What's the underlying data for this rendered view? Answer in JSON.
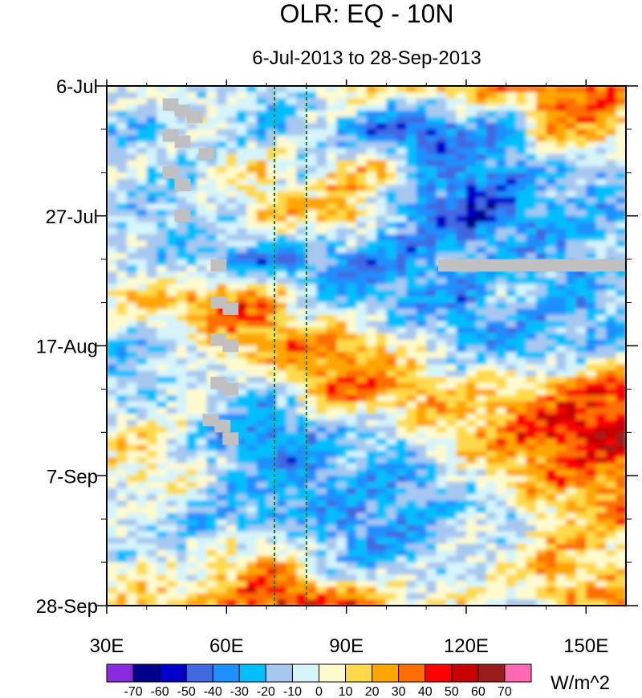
{
  "chart_data": {
    "type": "heatmap",
    "title": "OLR: EQ - 10N",
    "subtitle": "6-Jul-2013 to 28-Sep-2013",
    "x_axis": {
      "range": [
        30,
        160
      ],
      "ticks": [
        {
          "value": 30,
          "label": "30E"
        },
        {
          "value": 60,
          "label": "60E"
        },
        {
          "value": 90,
          "label": "90E"
        },
        {
          "value": 120,
          "label": "120E"
        },
        {
          "value": 150,
          "label": "150E"
        }
      ]
    },
    "y_axis": {
      "range": [
        "2013-07-06",
        "2013-09-28"
      ],
      "direction": "downward",
      "ticks": [
        {
          "value": "2013-07-06",
          "label": "6-Jul"
        },
        {
          "value": "2013-07-27",
          "label": "27-Jul"
        },
        {
          "value": "2013-08-17",
          "label": "17-Aug"
        },
        {
          "value": "2013-09-07",
          "label": "7-Sep"
        },
        {
          "value": "2013-09-28",
          "label": "28-Sep"
        }
      ]
    },
    "reference_lines": [
      {
        "axis": "x",
        "value": 72,
        "color": "#1a7f1a",
        "style": "dashed"
      },
      {
        "axis": "x",
        "value": 80,
        "color": "#1a7f1a",
        "style": "dashed"
      }
    ],
    "missing_data_color": "#c0c0c0",
    "colorbar": {
      "units": "W/m^2",
      "levels": [
        -70,
        -60,
        -50,
        -40,
        -30,
        -20,
        -10,
        0,
        10,
        20,
        30,
        40,
        50,
        60,
        70
      ],
      "labels": [
        "-70",
        "-60",
        "-50",
        "-40",
        "-30",
        "-20",
        "-10",
        "0",
        "10",
        "20",
        "30",
        "40",
        "50",
        "60",
        "70"
      ],
      "colors": [
        "#8a2be2",
        "#00008b",
        "#0000cd",
        "#4169e1",
        "#1e90ff",
        "#00bfff",
        "#a6c8f0",
        "#d4f4fa",
        "#fffacd",
        "#ffd94a",
        "#ffa500",
        "#ff6e00",
        "#ff0000",
        "#c80000",
        "#9b1c1c",
        "#ff69b4"
      ]
    },
    "sample_grid": {
      "x": [
        30,
        40,
        50,
        60,
        70,
        80,
        90,
        100,
        110,
        120,
        130,
        140,
        150,
        160
      ],
      "y": [
        "2013-07-06",
        "2013-07-13",
        "2013-07-20",
        "2013-07-27",
        "2013-08-03",
        "2013-08-10",
        "2013-08-17",
        "2013-08-24",
        "2013-08-31",
        "2013-09-07",
        "2013-09-14",
        "2013-09-21",
        "2013-09-28"
      ],
      "values": [
        [
          -10,
          -5,
          0,
          -10,
          -20,
          -5,
          15,
          10,
          20,
          25,
          30,
          35,
          30,
          25
        ],
        [
          -15,
          -20,
          -10,
          -5,
          -20,
          -10,
          -30,
          -45,
          -55,
          -30,
          -40,
          25,
          30,
          20
        ],
        [
          -5,
          -10,
          -15,
          5,
          10,
          -10,
          20,
          15,
          -30,
          -40,
          -35,
          -20,
          -30,
          -15
        ],
        [
          -10,
          -20,
          -15,
          -5,
          20,
          15,
          25,
          -20,
          -35,
          -55,
          -40,
          -30,
          -20,
          -25
        ],
        [
          -5,
          -10,
          -20,
          -30,
          -45,
          -30,
          -40,
          -35,
          -30,
          -25,
          -20,
          -30,
          -25,
          -10
        ],
        [
          10,
          15,
          25,
          40,
          30,
          -10,
          -20,
          -25,
          -30,
          -35,
          -15,
          -20,
          -30,
          -15
        ],
        [
          -20,
          -25,
          -10,
          20,
          30,
          35,
          30,
          10,
          -10,
          -20,
          -30,
          -25,
          -20,
          -15
        ],
        [
          -15,
          -20,
          5,
          -20,
          -15,
          15,
          40,
          30,
          20,
          10,
          15,
          20,
          35,
          40
        ],
        [
          5,
          10,
          -10,
          -30,
          -40,
          -30,
          -15,
          -20,
          10,
          20,
          30,
          45,
          55,
          50
        ],
        [
          5,
          10,
          0,
          -15,
          -25,
          -35,
          -20,
          -30,
          -25,
          -10,
          15,
          25,
          30,
          35
        ],
        [
          -10,
          -15,
          -20,
          -25,
          -30,
          -20,
          -35,
          -30,
          -25,
          -10,
          -20,
          10,
          20,
          25
        ],
        [
          -5,
          5,
          -10,
          15,
          25,
          -10,
          -20,
          -25,
          -15,
          -5,
          10,
          25,
          15,
          5
        ],
        [
          10,
          15,
          20,
          30,
          45,
          55,
          40,
          20,
          10,
          5,
          -10,
          15,
          20,
          25
        ]
      ]
    }
  }
}
